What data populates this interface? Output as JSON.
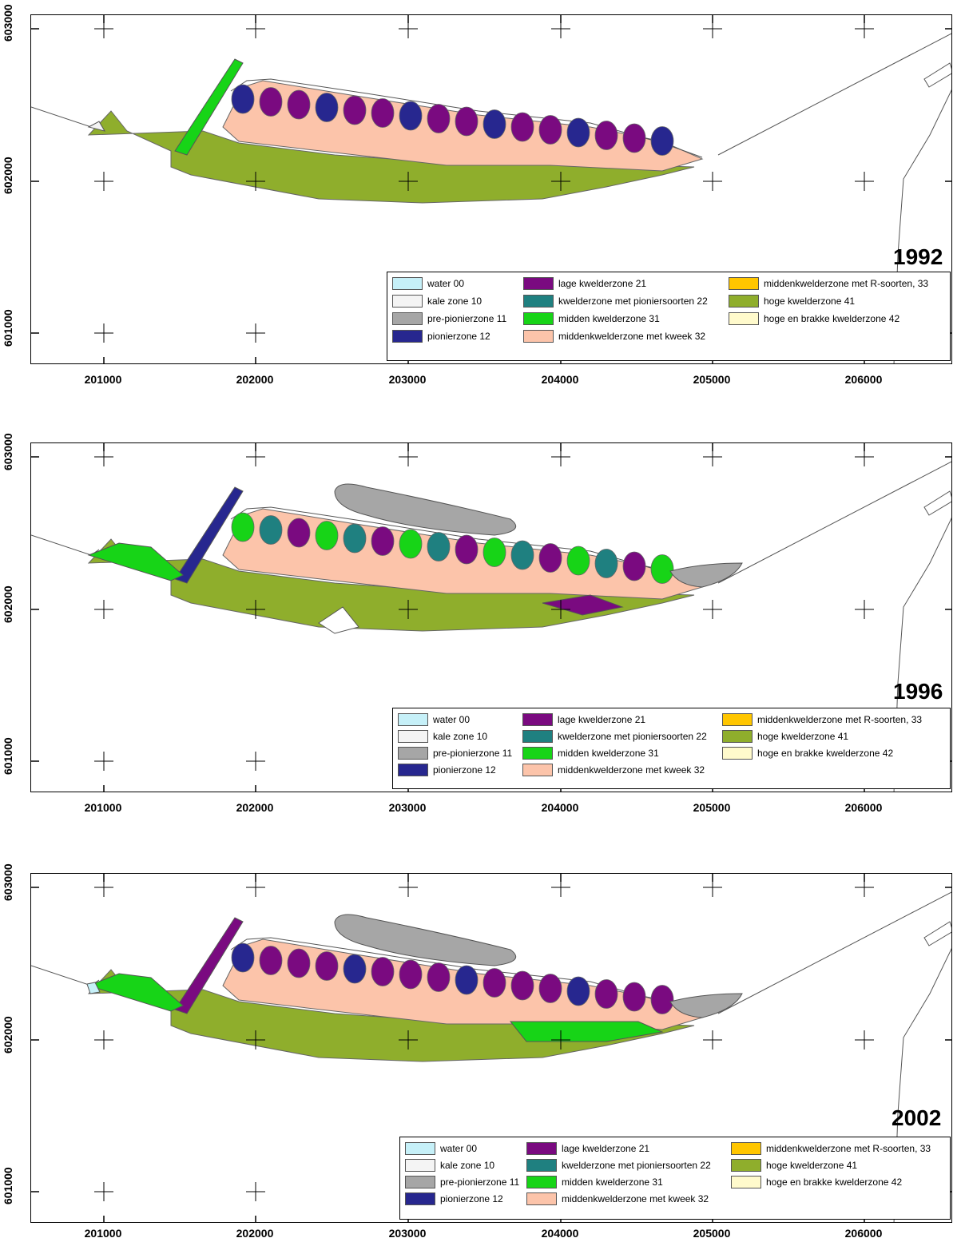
{
  "axes": {
    "x_ticks": [
      "201000",
      "202000",
      "203000",
      "204000",
      "205000",
      "206000"
    ],
    "y_ticks": [
      "603000",
      "602000",
      "601000"
    ]
  },
  "panels": [
    {
      "year": "1992"
    },
    {
      "year": "1996"
    },
    {
      "year": "2002"
    }
  ],
  "legend": [
    {
      "label": "water 00",
      "color": "#c6f0f8"
    },
    {
      "label": "kale zone 10",
      "color": "#f4f4f4"
    },
    {
      "label": "pre-pionierzone 11",
      "color": "#a6a6a6"
    },
    {
      "label": "pionierzone 12",
      "color": "#27278f"
    },
    {
      "label": "lage kwelderzone 21",
      "color": "#7a0a80"
    },
    {
      "label": "kwelderzone met pioniersoorten 22",
      "color": "#1f8080"
    },
    {
      "label": "midden kwelderzone 31",
      "color": "#17d417"
    },
    {
      "label": "middenkwelderzone met kweek 32",
      "color": "#fcc4aa"
    },
    {
      "label": "middenkwelderzone met R-soorten, 33",
      "color": "#ffc600"
    },
    {
      "label": "hoge kwelderzone 41",
      "color": "#8fae2c"
    },
    {
      "label": "hoge en brakke kwelderzone 42",
      "color": "#fffacc"
    }
  ]
}
